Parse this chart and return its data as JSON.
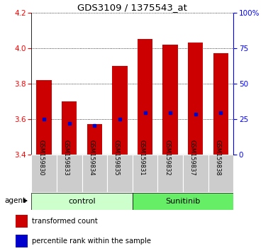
{
  "title": "GDS3109 / 1375543_at",
  "samples": [
    "GSM159830",
    "GSM159833",
    "GSM159834",
    "GSM159835",
    "GSM159831",
    "GSM159832",
    "GSM159837",
    "GSM159838"
  ],
  "red_values": [
    3.82,
    3.7,
    3.57,
    3.9,
    4.05,
    4.02,
    4.03,
    3.97
  ],
  "blue_values": [
    3.6,
    3.575,
    3.562,
    3.6,
    3.635,
    3.633,
    3.625,
    3.633
  ],
  "bar_bottom": 3.4,
  "ylim": [
    3.4,
    4.2
  ],
  "right_ylim": [
    0,
    100
  ],
  "right_yticks": [
    0,
    25,
    50,
    75,
    100
  ],
  "right_yticklabels": [
    "0",
    "25",
    "50",
    "75",
    "100%"
  ],
  "left_yticks": [
    3.4,
    3.6,
    3.8,
    4.0,
    4.2
  ],
  "bar_color": "#cc0000",
  "blue_color": "#0000cc",
  "control_color": "#ccffcc",
  "sunitinib_color": "#66ee66",
  "sample_bg_color": "#cccccc",
  "agent_label": "agent",
  "legend_red": "transformed count",
  "legend_blue": "percentile rank within the sample",
  "label_control": "control",
  "label_sunitinib": "Sunitinib"
}
